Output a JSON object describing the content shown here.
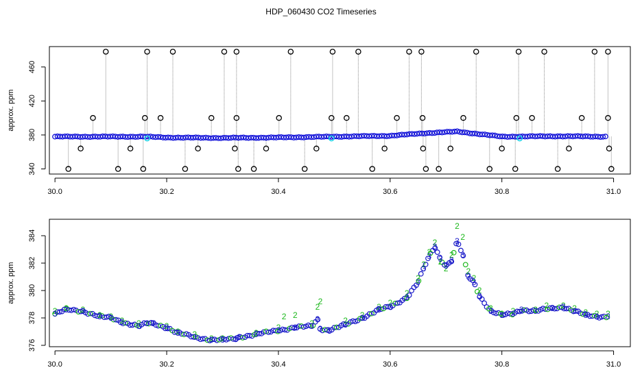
{
  "title": "HDP_060430  CO2 Timeseries",
  "chart_data": [
    {
      "type": "scatter",
      "ylabel": "approx. ppm",
      "xlim": [
        29.99,
        31.03
      ],
      "ylim": [
        334,
        484
      ],
      "x_ticks": [
        30.0,
        30.2,
        30.4,
        30.6,
        30.8,
        31.0
      ],
      "x_tick_labels": [
        "30.0",
        "30.2",
        "30.4",
        "30.6",
        "30.8",
        "31.0"
      ],
      "y_ticks": [
        340,
        380,
        420,
        460
      ],
      "y_tick_labels": [
        "340",
        "380",
        "420",
        "460"
      ],
      "colors": {
        "main": "#1010d8",
        "highlight": "#22d4e8",
        "outlier": "#000000",
        "spike": "#888888"
      },
      "baseline_series": [
        {
          "x": 30.0,
          "y": 378
        },
        {
          "x": 30.1,
          "y": 378
        },
        {
          "x": 30.16,
          "y": 378
        },
        {
          "x": 30.2,
          "y": 377
        },
        {
          "x": 30.3,
          "y": 376.5
        },
        {
          "x": 30.4,
          "y": 377
        },
        {
          "x": 30.5,
          "y": 378
        },
        {
          "x": 30.6,
          "y": 379
        },
        {
          "x": 30.66,
          "y": 382
        },
        {
          "x": 30.72,
          "y": 384
        },
        {
          "x": 30.8,
          "y": 378
        },
        {
          "x": 30.9,
          "y": 378.5
        },
        {
          "x": 30.99,
          "y": 378
        }
      ],
      "highlight_points": [
        {
          "x": 30.165,
          "y": 376
        },
        {
          "x": 30.495,
          "y": 376
        },
        {
          "x": 30.832,
          "y": 376
        }
      ],
      "outlier_points": [
        {
          "x": 30.091,
          "y": 478
        },
        {
          "x": 30.165,
          "y": 478
        },
        {
          "x": 30.211,
          "y": 478
        },
        {
          "x": 30.303,
          "y": 478
        },
        {
          "x": 30.325,
          "y": 478
        },
        {
          "x": 30.422,
          "y": 478
        },
        {
          "x": 30.497,
          "y": 478
        },
        {
          "x": 30.543,
          "y": 478
        },
        {
          "x": 30.634,
          "y": 478
        },
        {
          "x": 30.656,
          "y": 478
        },
        {
          "x": 30.754,
          "y": 478
        },
        {
          "x": 30.83,
          "y": 478
        },
        {
          "x": 30.876,
          "y": 478
        },
        {
          "x": 30.966,
          "y": 478
        },
        {
          "x": 30.99,
          "y": 478
        },
        {
          "x": 30.068,
          "y": 400
        },
        {
          "x": 30.161,
          "y": 400
        },
        {
          "x": 30.189,
          "y": 400
        },
        {
          "x": 30.28,
          "y": 400
        },
        {
          "x": 30.325,
          "y": 400
        },
        {
          "x": 30.401,
          "y": 400
        },
        {
          "x": 30.495,
          "y": 400
        },
        {
          "x": 30.522,
          "y": 400
        },
        {
          "x": 30.612,
          "y": 400
        },
        {
          "x": 30.658,
          "y": 400
        },
        {
          "x": 30.731,
          "y": 400
        },
        {
          "x": 30.826,
          "y": 400
        },
        {
          "x": 30.854,
          "y": 400
        },
        {
          "x": 30.943,
          "y": 400
        },
        {
          "x": 30.99,
          "y": 400
        },
        {
          "x": 30.046,
          "y": 364
        },
        {
          "x": 30.135,
          "y": 364
        },
        {
          "x": 30.256,
          "y": 364
        },
        {
          "x": 30.322,
          "y": 364
        },
        {
          "x": 30.378,
          "y": 364
        },
        {
          "x": 30.468,
          "y": 364
        },
        {
          "x": 30.59,
          "y": 364
        },
        {
          "x": 30.659,
          "y": 364
        },
        {
          "x": 30.708,
          "y": 364
        },
        {
          "x": 30.8,
          "y": 364
        },
        {
          "x": 30.92,
          "y": 364
        },
        {
          "x": 30.992,
          "y": 364
        },
        {
          "x": 30.024,
          "y": 340
        },
        {
          "x": 30.113,
          "y": 340
        },
        {
          "x": 30.158,
          "y": 340
        },
        {
          "x": 30.233,
          "y": 340
        },
        {
          "x": 30.328,
          "y": 340
        },
        {
          "x": 30.356,
          "y": 340
        },
        {
          "x": 30.447,
          "y": 340
        },
        {
          "x": 30.568,
          "y": 340
        },
        {
          "x": 30.664,
          "y": 340
        },
        {
          "x": 30.687,
          "y": 340
        },
        {
          "x": 30.778,
          "y": 340
        },
        {
          "x": 30.824,
          "y": 340
        },
        {
          "x": 30.9,
          "y": 340
        },
        {
          "x": 30.996,
          "y": 340
        }
      ]
    },
    {
      "type": "scatter",
      "ylabel": "approx. ppm",
      "xlim": [
        29.99,
        31.03
      ],
      "ylim": [
        375.9,
        385.2
      ],
      "x_ticks": [
        30.0,
        30.2,
        30.4,
        30.6,
        30.8,
        31.0
      ],
      "x_tick_labels": [
        "30.0",
        "30.2",
        "30.4",
        "30.6",
        "30.8",
        "31.0"
      ],
      "y_ticks": [
        376,
        378,
        380,
        382,
        384
      ],
      "y_tick_labels": [
        "376",
        "378",
        "380",
        "382",
        "384"
      ],
      "colors": {
        "series3": "#1818c8",
        "series2": "#1cb81c"
      },
      "series": [
        {
          "marker": "3",
          "points": [
            {
              "x": 30.0,
              "y": 378.3
            },
            {
              "x": 30.02,
              "y": 378.6
            },
            {
              "x": 30.05,
              "y": 378.5
            },
            {
              "x": 30.08,
              "y": 378.1
            },
            {
              "x": 30.1,
              "y": 378.0
            },
            {
              "x": 30.12,
              "y": 377.7
            },
            {
              "x": 30.15,
              "y": 377.4
            },
            {
              "x": 30.165,
              "y": 377.6
            },
            {
              "x": 30.175,
              "y": 377.6
            },
            {
              "x": 30.2,
              "y": 377.3
            },
            {
              "x": 30.22,
              "y": 376.9
            },
            {
              "x": 30.25,
              "y": 376.6
            },
            {
              "x": 30.28,
              "y": 376.4
            },
            {
              "x": 30.3,
              "y": 376.4
            },
            {
              "x": 30.325,
              "y": 376.5
            },
            {
              "x": 30.33,
              "y": 376.6
            },
            {
              "x": 30.36,
              "y": 376.8
            },
            {
              "x": 30.4,
              "y": 377.1
            },
            {
              "x": 30.43,
              "y": 377.3
            },
            {
              "x": 30.46,
              "y": 377.4
            },
            {
              "x": 30.47,
              "y": 377.9
            },
            {
              "x": 30.475,
              "y": 377.2
            },
            {
              "x": 30.49,
              "y": 377.1
            },
            {
              "x": 30.52,
              "y": 377.5
            },
            {
              "x": 30.55,
              "y": 378.0
            },
            {
              "x": 30.58,
              "y": 378.6
            },
            {
              "x": 30.6,
              "y": 378.8
            },
            {
              "x": 30.63,
              "y": 379.5
            },
            {
              "x": 30.65,
              "y": 380.6
            },
            {
              "x": 30.66,
              "y": 381.6
            },
            {
              "x": 30.67,
              "y": 382.5
            },
            {
              "x": 30.68,
              "y": 383.2
            },
            {
              "x": 30.69,
              "y": 382.3
            },
            {
              "x": 30.7,
              "y": 381.8
            },
            {
              "x": 30.71,
              "y": 382.2
            },
            {
              "x": 30.72,
              "y": 383.6
            },
            {
              "x": 30.73,
              "y": 382.6
            },
            {
              "x": 30.74,
              "y": 381.0
            },
            {
              "x": 30.75,
              "y": 380.6
            },
            {
              "x": 30.76,
              "y": 379.6
            },
            {
              "x": 30.78,
              "y": 378.5
            },
            {
              "x": 30.8,
              "y": 378.2
            },
            {
              "x": 30.82,
              "y": 378.3
            },
            {
              "x": 30.835,
              "y": 378.6
            },
            {
              "x": 30.86,
              "y": 378.5
            },
            {
              "x": 30.89,
              "y": 378.7
            },
            {
              "x": 30.91,
              "y": 378.8
            },
            {
              "x": 30.93,
              "y": 378.5
            },
            {
              "x": 30.95,
              "y": 378.2
            },
            {
              "x": 30.97,
              "y": 378.1
            },
            {
              "x": 30.99,
              "y": 378.1
            }
          ]
        },
        {
          "marker": "2",
          "points": [
            {
              "x": 30.0,
              "y": 378.5
            },
            {
              "x": 30.02,
              "y": 378.7
            },
            {
              "x": 30.05,
              "y": 378.6
            },
            {
              "x": 30.08,
              "y": 378.2
            },
            {
              "x": 30.1,
              "y": 378.1
            },
            {
              "x": 30.12,
              "y": 377.8
            },
            {
              "x": 30.15,
              "y": 377.6
            },
            {
              "x": 30.2,
              "y": 377.4
            },
            {
              "x": 30.22,
              "y": 377.0
            },
            {
              "x": 30.25,
              "y": 376.8
            },
            {
              "x": 30.28,
              "y": 376.5
            },
            {
              "x": 30.3,
              "y": 376.5
            },
            {
              "x": 30.36,
              "y": 376.9
            },
            {
              "x": 30.4,
              "y": 377.3
            },
            {
              "x": 30.41,
              "y": 378.1
            },
            {
              "x": 30.43,
              "y": 378.2
            },
            {
              "x": 30.46,
              "y": 377.6
            },
            {
              "x": 30.47,
              "y": 378.8
            },
            {
              "x": 30.475,
              "y": 379.2
            },
            {
              "x": 30.52,
              "y": 377.8
            },
            {
              "x": 30.55,
              "y": 378.2
            },
            {
              "x": 30.58,
              "y": 378.8
            },
            {
              "x": 30.6,
              "y": 379.1
            },
            {
              "x": 30.63,
              "y": 379.8
            },
            {
              "x": 30.65,
              "y": 380.9
            },
            {
              "x": 30.66,
              "y": 381.9
            },
            {
              "x": 30.67,
              "y": 382.8
            },
            {
              "x": 30.68,
              "y": 383.5
            },
            {
              "x": 30.69,
              "y": 382.1
            },
            {
              "x": 30.7,
              "y": 381.6
            },
            {
              "x": 30.71,
              "y": 382.6
            },
            {
              "x": 30.72,
              "y": 384.7
            },
            {
              "x": 30.73,
              "y": 383.9
            },
            {
              "x": 30.74,
              "y": 381.4
            },
            {
              "x": 30.75,
              "y": 380.9
            },
            {
              "x": 30.76,
              "y": 380.0
            },
            {
              "x": 30.78,
              "y": 378.7
            },
            {
              "x": 30.8,
              "y": 378.3
            },
            {
              "x": 30.82,
              "y": 378.5
            },
            {
              "x": 30.86,
              "y": 378.6
            },
            {
              "x": 30.88,
              "y": 378.9
            },
            {
              "x": 30.91,
              "y": 378.9
            },
            {
              "x": 30.93,
              "y": 378.7
            },
            {
              "x": 30.95,
              "y": 378.4
            },
            {
              "x": 30.97,
              "y": 378.3
            },
            {
              "x": 30.99,
              "y": 378.3
            }
          ]
        }
      ]
    }
  ]
}
